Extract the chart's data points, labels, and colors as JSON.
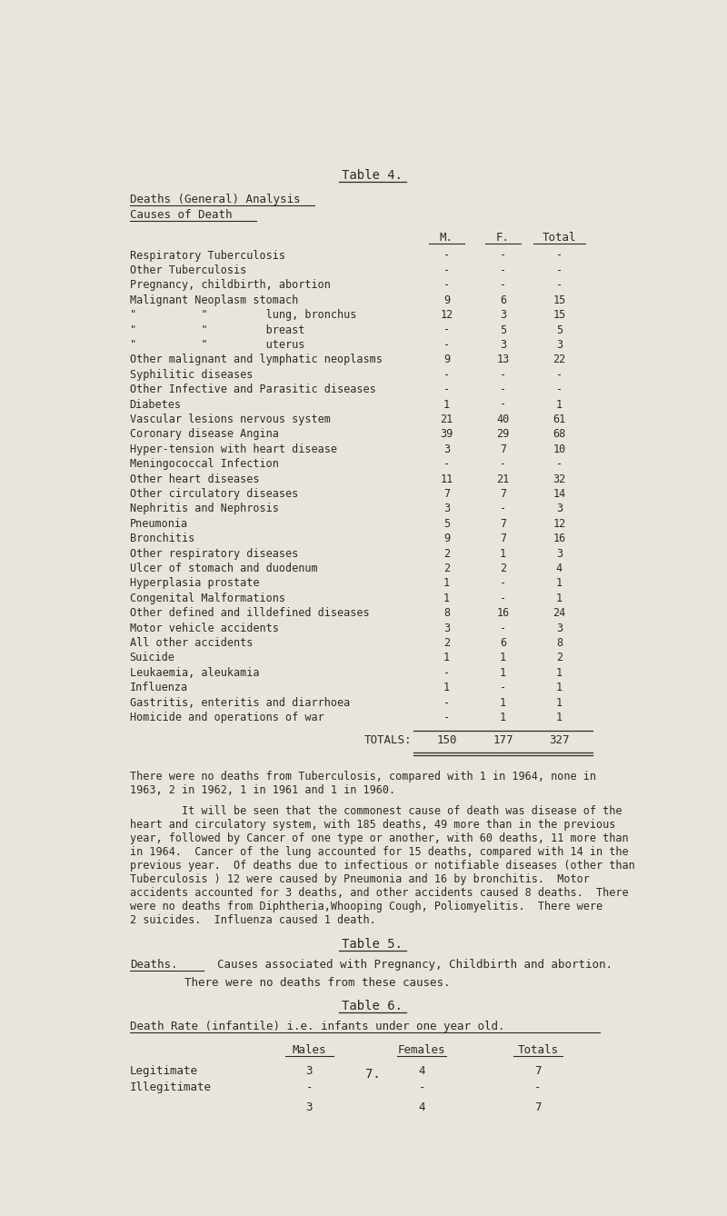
{
  "bg_color": "#e8e6dc",
  "text_color": "#2a2a2a",
  "font_family": "DejaVu Sans Mono",
  "title": "Table 4.",
  "section1_heading1": "Deaths (General) Analysis",
  "section1_heading2": "Causes of Death",
  "col_headers": [
    "M.",
    "F.",
    "Total"
  ],
  "table_rows": [
    [
      "Respiratory Tuberculosis",
      "-",
      "-",
      "-"
    ],
    [
      "Other Tuberculosis",
      "-",
      "-",
      "-"
    ],
    [
      "Pregnancy, childbirth, abortion",
      "-",
      "-",
      "-"
    ],
    [
      "Malignant Neoplasm stomach",
      "9",
      "6",
      "15"
    ],
    [
      "\"          \"         lung, bronchus",
      "12",
      "3",
      "15"
    ],
    [
      "\"          \"         breast",
      "-",
      "5",
      "5"
    ],
    [
      "\"          \"         uterus",
      "-",
      "3",
      "3"
    ],
    [
      "Other malignant and lymphatic neoplasms",
      "9",
      "13",
      "22"
    ],
    [
      "Syphilitic diseases",
      "-",
      "-",
      "-"
    ],
    [
      "Other Infective and Parasitic diseases",
      "-",
      "-",
      "-"
    ],
    [
      "Diabetes",
      "1",
      "-",
      "1"
    ],
    [
      "Vascular lesions nervous system",
      "21",
      "40",
      "61"
    ],
    [
      "Coronary disease Angina",
      "39",
      "29",
      "68"
    ],
    [
      "Hyper-tension with heart disease",
      "3",
      "7",
      "10"
    ],
    [
      "Meningococcal Infection",
      "-",
      "-",
      "-"
    ],
    [
      "Other heart diseases",
      "11",
      "21",
      "32"
    ],
    [
      "Other circulatory diseases",
      "7",
      "7",
      "14"
    ],
    [
      "Nephritis and Nephrosis",
      "3",
      "-",
      "3"
    ],
    [
      "Pneumonia",
      "5",
      "7",
      "12"
    ],
    [
      "Bronchitis",
      "9",
      "7",
      "16"
    ],
    [
      "Other respiratory diseases",
      "2",
      "1",
      "3"
    ],
    [
      "Ulcer of stomach and duodenum",
      "2",
      "2",
      "4"
    ],
    [
      "Hyperplasia prostate",
      "1",
      "-",
      "1"
    ],
    [
      "Congenital Malformations",
      "1",
      "-",
      "1"
    ],
    [
      "Other defined and illdefined diseases",
      "8",
      "16",
      "24"
    ],
    [
      "Motor vehicle accidents",
      "3",
      "-",
      "3"
    ],
    [
      "All other accidents",
      "2",
      "6",
      "8"
    ],
    [
      "Suicide",
      "1",
      "1",
      "2"
    ],
    [
      "Leukaemia, aleukamia",
      "-",
      "1",
      "1"
    ],
    [
      "Influenza",
      "1",
      "-",
      "1"
    ],
    [
      "Gastritis, enteritis and diarrhoea",
      "-",
      "1",
      "1"
    ],
    [
      "Homicide and operations of war",
      "-",
      "1",
      "1"
    ]
  ],
  "totals_label": "TOTALS:",
  "totals": [
    "150",
    "177",
    "327"
  ],
  "para1": "There were no deaths from Tuberculosis, compared with 1 in 1964, none in\n1963, 2 in 1962, 1 in 1961 and 1 in 1960.",
  "para2_indent": "        It will be seen that the commonest cause of death was disease of the",
  "para2_lines": [
    "heart and circulatory system, with 185 deaths, 49 more than in the previous",
    "year, followed by Cancer of one type or another, with 60 deaths, 11 more than",
    "in 1964.  Cancer of the lung accounted for 15 deaths, compared with 14 in the",
    "previous year.  Of deaths due to infectious or notifiable diseases (other than",
    "Tuberculosis ) 12 were caused by Pneumonia and 16 by bronchitis.  Motor",
    "accidents accounted for 3 deaths, and other accidents caused 8 deaths.  There",
    "were no deaths from Diphtheria,Whooping Cough, Poliomyelitis.  There were",
    "2 suicides.  Influenza caused 1 death."
  ],
  "table5_title": "Table 5.",
  "table5_deaths_label": "Deaths.",
  "table5_heading_rest": "  Causes associated with Pregnancy, Childbirth and abortion.",
  "table5_text": "        There were no deaths from these causes.",
  "table6_title": "Table 6.",
  "table6_heading": "Death Rate (infantile) i.e. infants under one year old.",
  "table6_col_headers": [
    "Males",
    "Females",
    "Totals"
  ],
  "table6_rows": [
    [
      "Legitimate",
      "3",
      "4",
      "7"
    ],
    [
      "Illegitimate",
      "-",
      "-",
      "-"
    ]
  ],
  "table6_totals": [
    "3",
    "4",
    "7"
  ],
  "page_number": "7."
}
